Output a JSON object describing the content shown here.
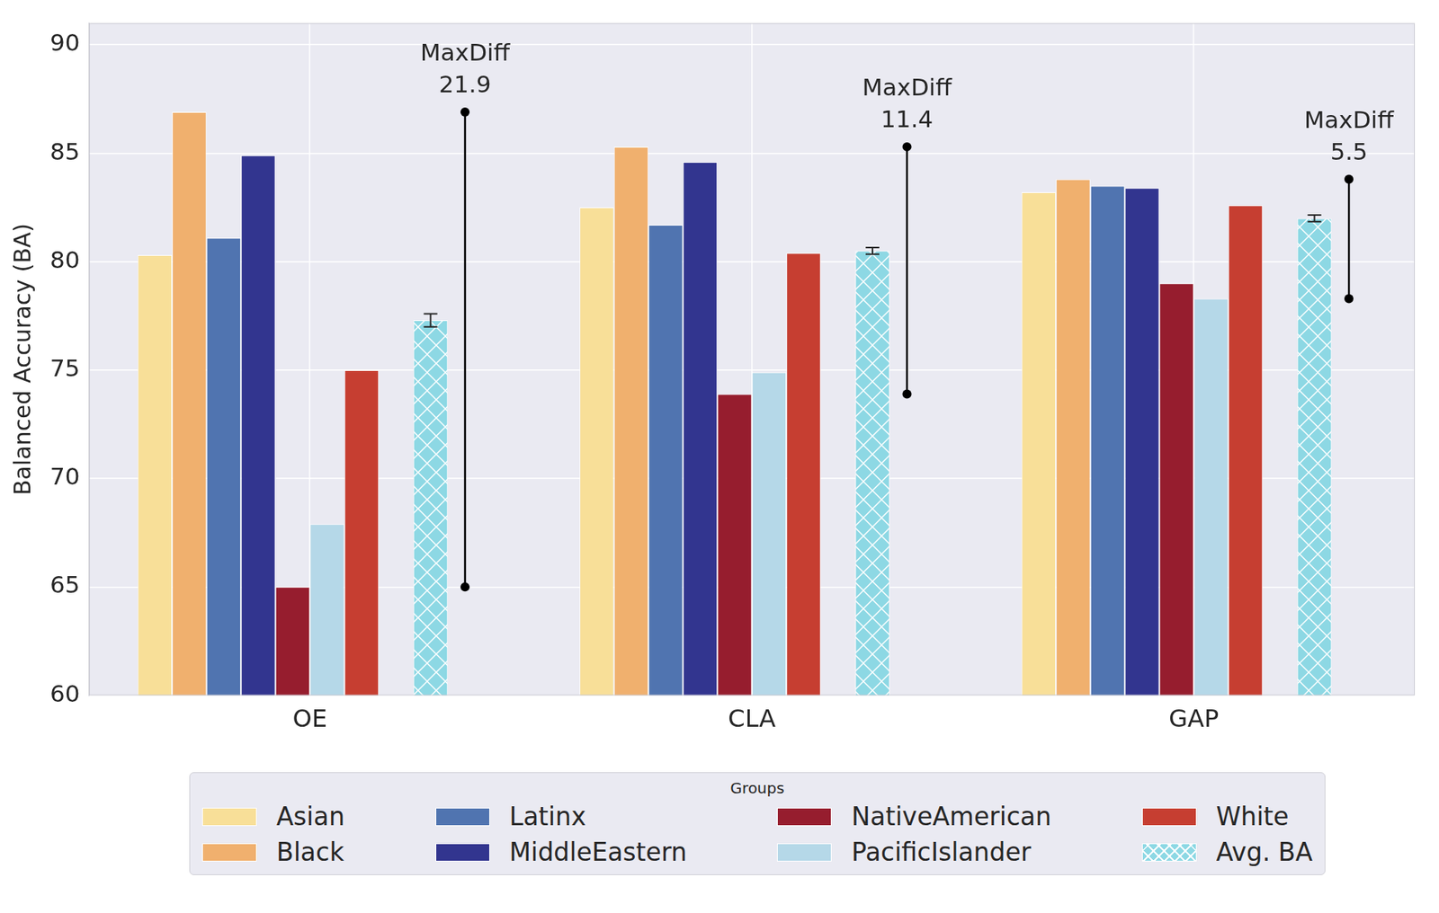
{
  "chart_data": {
    "type": "bar",
    "categories": [
      "OE",
      "CLA",
      "GAP"
    ],
    "series": [
      {
        "name": "Asian",
        "color": "#f8df98",
        "values": [
          80.3,
          82.5,
          83.2
        ]
      },
      {
        "name": "Black",
        "color": "#f0b06e",
        "values": [
          86.9,
          85.3,
          83.8
        ]
      },
      {
        "name": "Latinx",
        "color": "#5074b0",
        "values": [
          81.1,
          81.7,
          83.5
        ]
      },
      {
        "name": "MiddleEastern",
        "color": "#32358f",
        "values": [
          84.9,
          84.6,
          83.4
        ]
      },
      {
        "name": "NativeAmerican",
        "color": "#961d2e",
        "values": [
          65.0,
          73.9,
          79.0
        ]
      },
      {
        "name": "PacificIslander",
        "color": "#b5d8e8",
        "values": [
          67.9,
          74.9,
          78.3
        ]
      },
      {
        "name": "White",
        "color": "#c63e31",
        "values": [
          75.0,
          80.4,
          82.6
        ]
      },
      {
        "name": "Avg. BA",
        "color": "#8dd8e4",
        "values": [
          77.3,
          80.5,
          82.0
        ],
        "errors": [
          0.3,
          0.15,
          0.15
        ]
      }
    ],
    "ylabel": "Balanced Accuracy (BA)",
    "ylim": [
      60,
      91
    ],
    "yticks": [
      60,
      65,
      70,
      75,
      80,
      85,
      90
    ],
    "grid": true,
    "legend": "bottom",
    "legend_title": "Groups",
    "annotations": [
      {
        "category": "OE",
        "label": "MaxDiff",
        "value": 21.9
      },
      {
        "category": "CLA",
        "label": "MaxDiff",
        "value": 11.4
      },
      {
        "category": "GAP",
        "label": "MaxDiff",
        "value": 5.5
      }
    ]
  }
}
